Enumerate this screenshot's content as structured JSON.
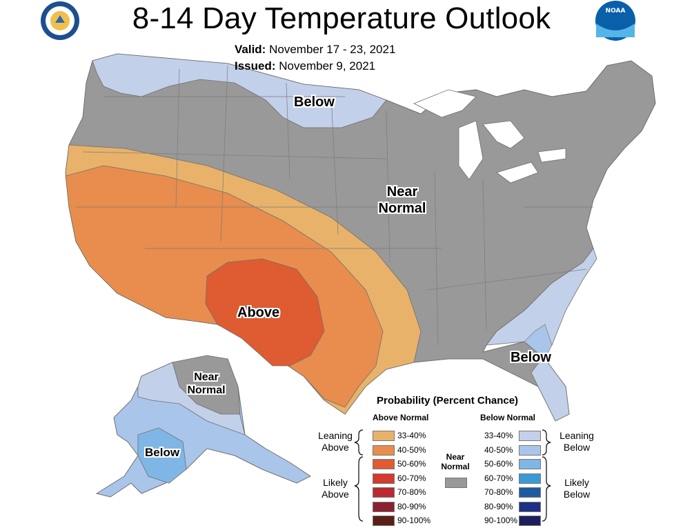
{
  "title": "8-14 Day Temperature Outlook",
  "valid_label": "Valid:",
  "valid_value": "November 17 - 23, 2021",
  "issued_label": "Issued:",
  "issued_value": "November 9, 2021",
  "regions": {
    "below_north": "Below",
    "near_normal_center_1": "Near",
    "near_normal_center_2": "Normal",
    "above": "Above",
    "below_southeast": "Below",
    "alaska_near_1": "Near",
    "alaska_near_2": "Normal",
    "alaska_below": "Below"
  },
  "legend": {
    "title": "Probability (Percent Chance)",
    "above_header": "Above Normal",
    "below_header": "Below Normal",
    "near_normal_1": "Near",
    "near_normal_2": "Normal",
    "leaning_above_1": "Leaning",
    "leaning_above_2": "Above",
    "likely_above_1": "Likely",
    "likely_above_2": "Above",
    "leaning_below_1": "Leaning",
    "leaning_below_2": "Below",
    "likely_below_1": "Likely",
    "likely_below_2": "Below",
    "above_bins": [
      {
        "label": "33-40%",
        "color": "#e8b26a"
      },
      {
        "label": "40-50%",
        "color": "#e88d4d"
      },
      {
        "label": "50-60%",
        "color": "#df5b31"
      },
      {
        "label": "60-70%",
        "color": "#d43a2e"
      },
      {
        "label": "70-80%",
        "color": "#bb2a33"
      },
      {
        "label": "80-90%",
        "color": "#8a2231"
      },
      {
        "label": "90-100%",
        "color": "#5a1f16"
      }
    ],
    "below_bins": [
      {
        "label": "33-40%",
        "color": "#c3d0ea"
      },
      {
        "label": "40-50%",
        "color": "#a9c5e9"
      },
      {
        "label": "50-60%",
        "color": "#80b6e6"
      },
      {
        "label": "60-70%",
        "color": "#3a9ad6"
      },
      {
        "label": "70-80%",
        "color": "#1f5aa0"
      },
      {
        "label": "80-90%",
        "color": "#1e2f85"
      },
      {
        "label": "90-100%",
        "color": "#1d1f5c"
      }
    ],
    "near_normal_color": "#999999"
  },
  "colors": {
    "near_normal": "#999999",
    "lean_above": "#e8b26a",
    "above_40": "#e88d4d",
    "above_50": "#df5b31",
    "lean_below": "#c3d0ea",
    "below_40": "#a9c5e9",
    "below_50": "#80b6e6"
  }
}
